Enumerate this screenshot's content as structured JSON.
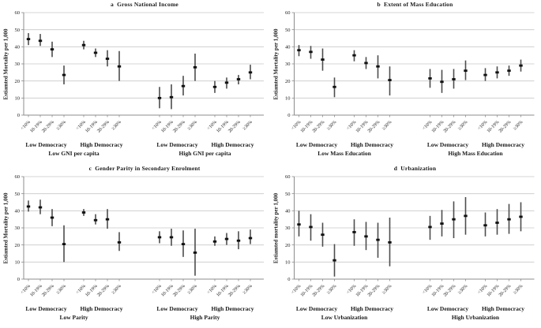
{
  "colors": {
    "background": "#ffffff",
    "grid": "#c9c9c9",
    "axis": "#8c8c8c",
    "error_bar": "#4d4d4d",
    "marker": "#111111",
    "text": "#1a1a1a"
  },
  "chart_data": [
    {
      "type": "scatter",
      "error_bars": true,
      "panel_letter": "a",
      "title": "a  Gross National Income",
      "ylabel": "Estiamted Mortality per 1,000",
      "ylim": [
        0,
        60
      ],
      "yticks": [
        0,
        10,
        20,
        30,
        40,
        50,
        60
      ],
      "grid": true,
      "legend": "none",
      "categories": [
        "<10%",
        "10-19%",
        "20-29%",
        "≥30%"
      ],
      "groups": [
        {
          "democracy_label": "Low Democracy",
          "points": [
            [
              44.5,
              41,
              48
            ],
            [
              43.5,
              40.5,
              47.5
            ],
            [
              38.5,
              34,
              43
            ],
            [
              23.5,
              18,
              29
            ]
          ]
        },
        {
          "democracy_label": "High Democracy",
          "points": [
            [
              41,
              38.5,
              43.5
            ],
            [
              36.5,
              34,
              39
            ],
            [
              33,
              28.5,
              38
            ],
            [
              28.5,
              20,
              37.5
            ]
          ]
        },
        {
          "democracy_label": "Low Democracy",
          "points": [
            [
              10,
              4,
              16.5
            ],
            [
              10.5,
              3.5,
              18
            ],
            [
              17,
              11.5,
              23
            ],
            [
              28,
              20,
              36
            ]
          ]
        },
        {
          "democracy_label": "High Democracy",
          "points": [
            [
              16.5,
              13,
              20
            ],
            [
              19,
              15.5,
              22
            ],
            [
              21,
              18,
              23.5
            ],
            [
              25,
              21,
              29.5
            ]
          ]
        }
      ],
      "context_labels": [
        "Low GNI per capita",
        "High GNI per capita"
      ]
    },
    {
      "type": "scatter",
      "error_bars": true,
      "panel_letter": "b",
      "title": "b  Extent of Mass Education",
      "ylabel": "Estiamted Mortality per 1,000",
      "ylim": [
        0,
        60
      ],
      "yticks": [
        0,
        10,
        20,
        30,
        40,
        50,
        60
      ],
      "grid": true,
      "legend": "none",
      "categories": [
        "<10%",
        "10-19%",
        "20-29%",
        "≥30%"
      ],
      "groups": [
        {
          "democracy_label": "Low Democracy",
          "points": [
            [
              38,
              34.5,
              41
            ],
            [
              37,
              33,
              40.5
            ],
            [
              32.5,
              26,
              39
            ],
            [
              16.5,
              10.5,
              22
            ]
          ]
        },
        {
          "democracy_label": "High Democracy",
          "points": [
            [
              35,
              31.5,
              38
            ],
            [
              30.5,
              27,
              34
            ],
            [
              28.5,
              21.5,
              35
            ],
            [
              20.5,
              11.5,
              28.5
            ]
          ]
        },
        {
          "democracy_label": "Low Democracy",
          "points": [
            [
              21.5,
              16,
              27
            ],
            [
              19.5,
              13,
              26.5
            ],
            [
              21,
              15.5,
              27
            ],
            [
              26,
              20.5,
              32
            ]
          ]
        },
        {
          "democracy_label": "High Democracy",
          "points": [
            [
              23.5,
              20,
              27.5
            ],
            [
              25,
              21.5,
              28.5
            ],
            [
              26,
              23,
              29
            ],
            [
              29,
              25.5,
              32.5
            ]
          ]
        }
      ],
      "context_labels": [
        "Low Mass Education",
        "High Mass Education"
      ]
    },
    {
      "type": "scatter",
      "error_bars": true,
      "panel_letter": "c",
      "title": "c  Gender Parity in Secondary Enrolment",
      "ylabel": "Estiamted Mortality per 1,000",
      "ylim": [
        0,
        60
      ],
      "yticks": [
        0,
        10,
        20,
        30,
        40,
        50,
        60
      ],
      "grid": true,
      "legend": "none",
      "categories": [
        "<10%",
        "10-19%",
        "20-29%",
        "≥30%"
      ],
      "groups": [
        {
          "democracy_label": "Low Democracy",
          "points": [
            [
              42.5,
              39.5,
              46
            ],
            [
              42,
              38,
              46.5
            ],
            [
              36,
              31,
              41
            ],
            [
              20.5,
              10,
              31.5
            ]
          ]
        },
        {
          "democracy_label": "High Democracy",
          "points": [
            [
              39,
              37,
              41
            ],
            [
              34.5,
              32,
              38
            ],
            [
              35,
              29.5,
              41
            ],
            [
              21.5,
              16.5,
              27.5
            ]
          ]
        },
        {
          "democracy_label": "Low Democracy",
          "points": [
            [
              24.5,
              21,
              28
            ],
            [
              24.5,
              19.5,
              29.5
            ],
            [
              20.5,
              13,
              28.5
            ],
            [
              15.5,
              2,
              29.5
            ]
          ]
        },
        {
          "democracy_label": "High Democracy",
          "points": [
            [
              22,
              19.5,
              25
            ],
            [
              23.5,
              20,
              27
            ],
            [
              22.5,
              17.5,
              28
            ],
            [
              24,
              20.5,
              29
            ]
          ]
        }
      ],
      "context_labels": [
        "Low Parity",
        "High Parity"
      ]
    },
    {
      "type": "scatter",
      "error_bars": true,
      "panel_letter": "d",
      "title": "d  Urbanization",
      "ylabel": "Estiamted mortality per 1,000",
      "ylim": [
        0,
        60
      ],
      "yticks": [
        0,
        10,
        20,
        30,
        40,
        50,
        60
      ],
      "grid": true,
      "legend": "none",
      "categories": [
        "<10%",
        "10-19%",
        "20-29%",
        "≥30%"
      ],
      "groups": [
        {
          "democracy_label": "Low Democracy",
          "points": [
            [
              32,
              25,
              40
            ],
            [
              30.5,
              22.5,
              38
            ],
            [
              26,
              19,
              33
            ],
            [
              11,
              1.5,
              20.5
            ]
          ]
        },
        {
          "democracy_label": "High Democracy",
          "points": [
            [
              27.5,
              19.5,
              35
            ],
            [
              25,
              17,
              33.5
            ],
            [
              23,
              12.5,
              33
            ],
            [
              21.5,
              7.5,
              36
            ]
          ]
        },
        {
          "democracy_label": "Low Democracy",
          "points": [
            [
              30.5,
              23,
              37
            ],
            [
              32.5,
              25,
              40.5
            ],
            [
              35,
              24,
              45.5
            ],
            [
              37,
              26,
              48
            ]
          ]
        },
        {
          "democracy_label": "High Democracy",
          "points": [
            [
              31.5,
              25,
              39
            ],
            [
              33,
              26,
              41
            ],
            [
              35,
              26.5,
              44
            ],
            [
              36.5,
              28,
              45
            ]
          ]
        }
      ],
      "context_labels": [
        "Low Urbanization",
        "High Urbanization"
      ]
    }
  ]
}
